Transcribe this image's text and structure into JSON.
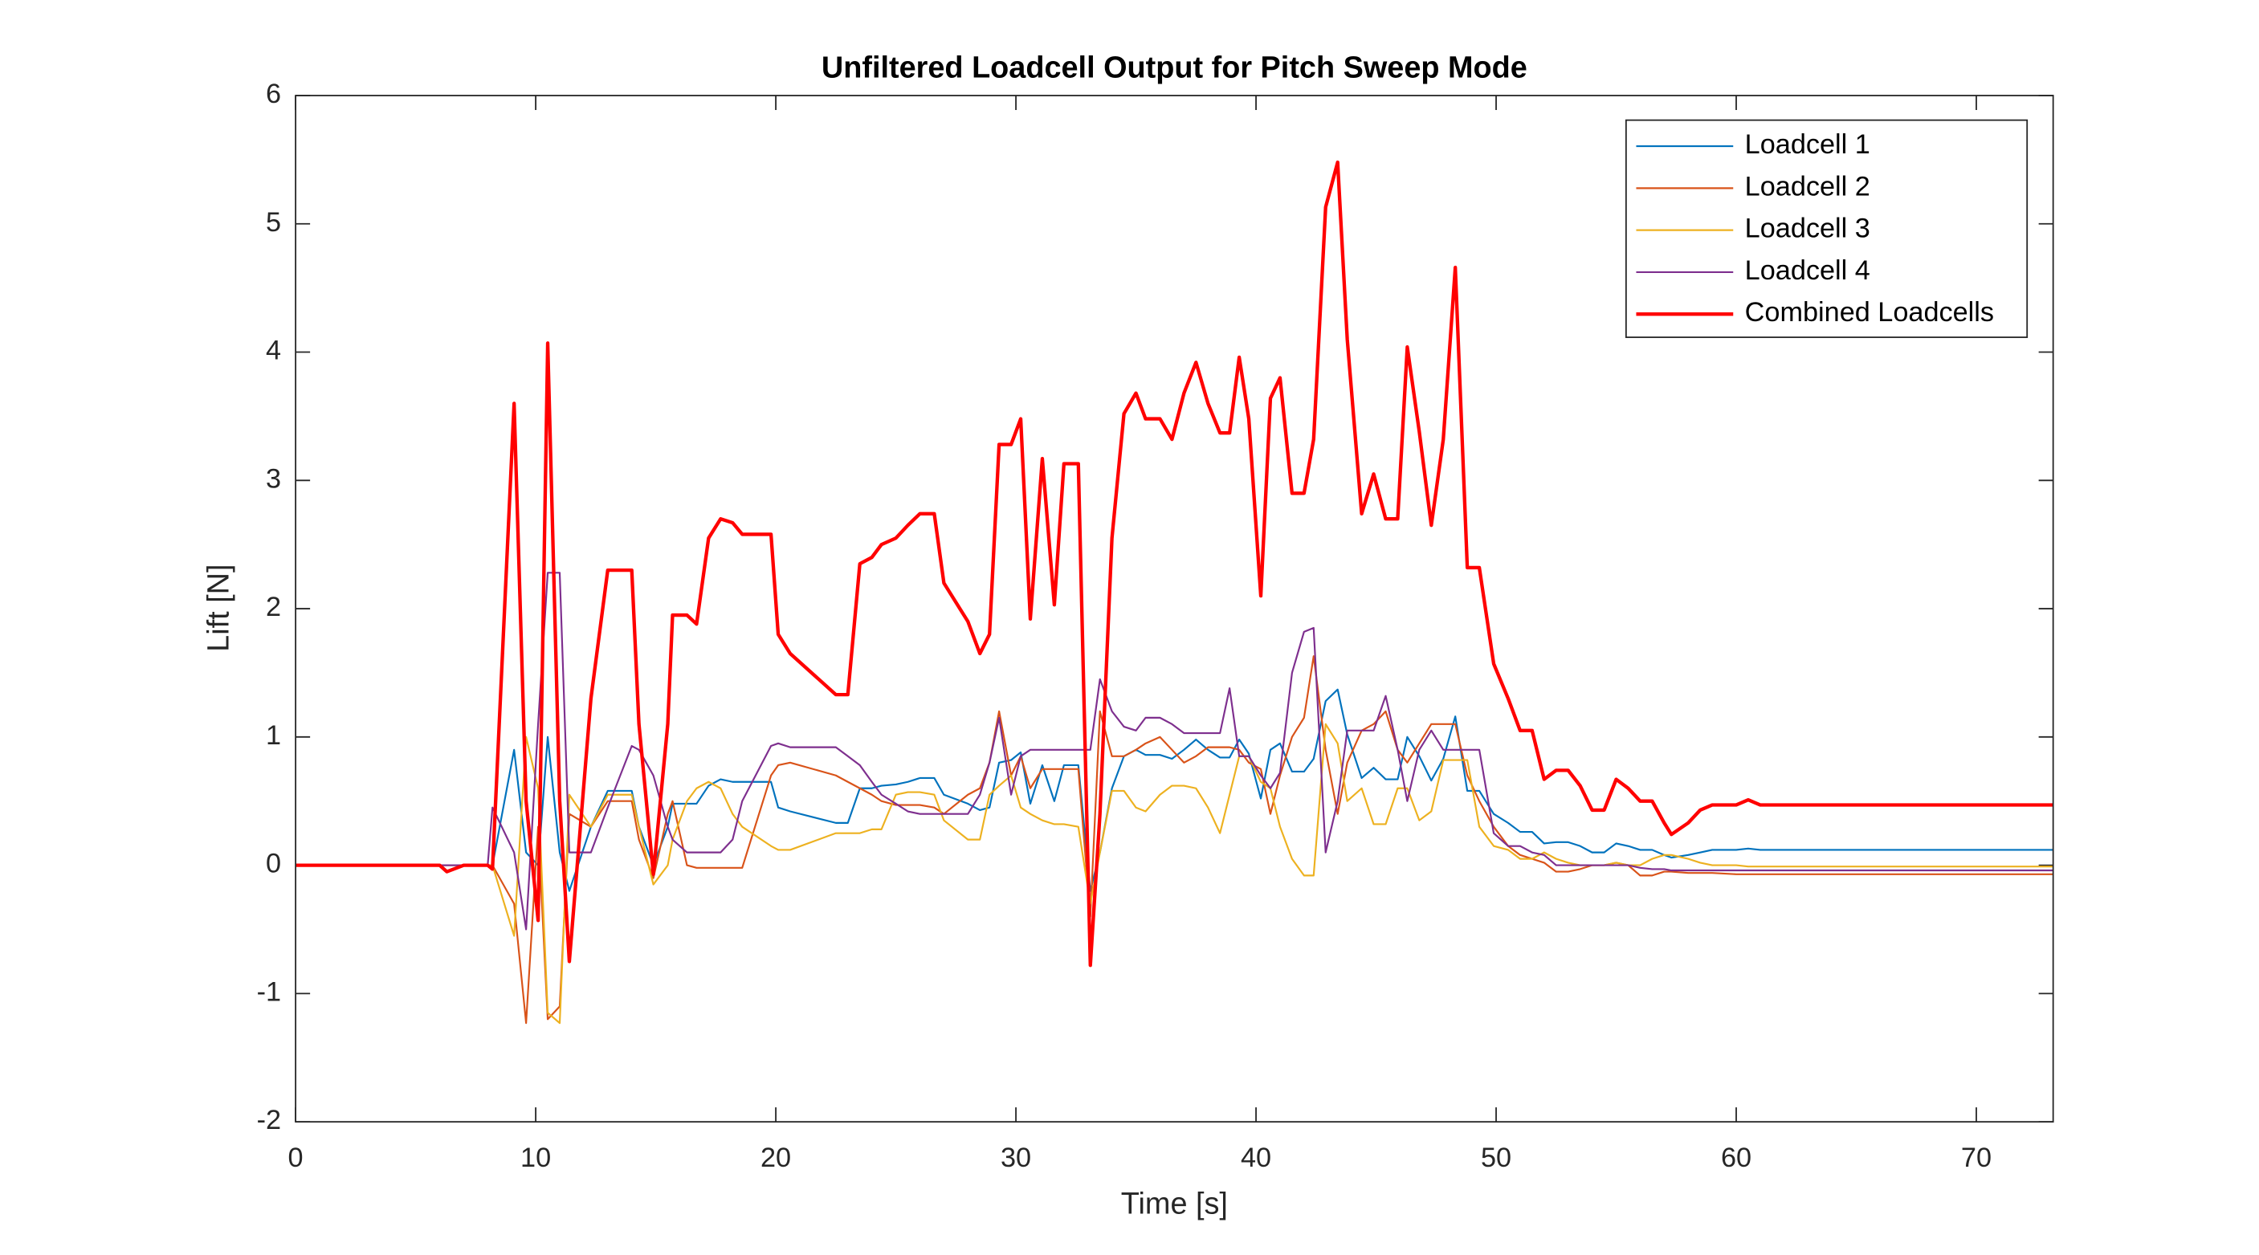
{
  "chart_data": {
    "type": "line",
    "title": "Unfiltered Loadcell Output for Pitch Sweep Mode",
    "x_label": "Time [s]",
    "y_label": "Lift [N]",
    "xlim": [
      0,
      73.2
    ],
    "ylim": [
      -2,
      6
    ],
    "xticks": [
      0,
      10,
      20,
      30,
      40,
      50,
      60,
      70
    ],
    "yticks": [
      -2,
      -1,
      0,
      1,
      2,
      3,
      4,
      5,
      6
    ],
    "legend": "upper right",
    "x": [
      0,
      6,
      6.3,
      7,
      8,
      8.2,
      9.1,
      9.6,
      10.1,
      10.5,
      11,
      11.4,
      12.3,
      13,
      14,
      14.3,
      14.9,
      15.5,
      15.7,
      16.3,
      16.7,
      17.2,
      17.7,
      18.2,
      18.6,
      19.8,
      20.1,
      20.6,
      22.5,
      23,
      23.5,
      24,
      24.4,
      25,
      25.5,
      26,
      26.6,
      27,
      28,
      28.5,
      28.9,
      29.3,
      29.8,
      30.2,
      30.6,
      31.1,
      31.6,
      32,
      32.6,
      33.1,
      33.5,
      34,
      34.5,
      35,
      35.4,
      36,
      36.5,
      37,
      37.5,
      38,
      38.5,
      38.9,
      39.3,
      39.7,
      40.2,
      40.6,
      41,
      41.5,
      42,
      42.4,
      42.9,
      43.4,
      43.8,
      44.4,
      44.9,
      45.4,
      45.9,
      46.3,
      46.8,
      47.3,
      47.8,
      48.3,
      48.8,
      49.3,
      49.9,
      50.5,
      51,
      51.5,
      52,
      52.5,
      53,
      53.5,
      54,
      54.5,
      55,
      55.5,
      56,
      56.5,
      57,
      57.3,
      58,
      58.5,
      59,
      60,
      60.5,
      61,
      73.2
    ],
    "series": [
      {
        "name": "Loadcell 1",
        "color": "#0072bd",
        "width": 1.2,
        "values": [
          0,
          0,
          0,
          0,
          0,
          0,
          0.9,
          0.1,
          0,
          1.0,
          0.1,
          -0.2,
          0.3,
          0.58,
          0.58,
          0.3,
          0,
          0.3,
          0.48,
          0.48,
          0.48,
          0.62,
          0.67,
          0.65,
          0.65,
          0.65,
          0.45,
          0.42,
          0.33,
          0.33,
          0.6,
          0.6,
          0.62,
          0.63,
          0.65,
          0.68,
          0.68,
          0.55,
          0.48,
          0.43,
          0.45,
          0.8,
          0.82,
          0.88,
          0.48,
          0.78,
          0.5,
          0.78,
          0.78,
          -0.2,
          0.1,
          0.6,
          0.85,
          0.9,
          0.86,
          0.86,
          0.83,
          0.9,
          0.98,
          0.9,
          0.84,
          0.84,
          0.98,
          0.87,
          0.52,
          0.9,
          0.95,
          0.73,
          0.73,
          0.83,
          1.28,
          1.37,
          1.02,
          0.68,
          0.76,
          0.67,
          0.67,
          1.0,
          0.85,
          0.66,
          0.83,
          1.16,
          0.58,
          0.58,
          0.4,
          0.33,
          0.26,
          0.26,
          0.17,
          0.18,
          0.18,
          0.15,
          0.1,
          0.1,
          0.17,
          0.15,
          0.12,
          0.12,
          0.08,
          0.06,
          0.08,
          0.1,
          0.12,
          0.12,
          0.13,
          0.12,
          0.12
        ]
      },
      {
        "name": "Loadcell 2",
        "color": "#d95319",
        "width": 1.2,
        "values": [
          0,
          0,
          0,
          0,
          0,
          0,
          -0.3,
          -1.23,
          0.3,
          -1.2,
          -1.1,
          0.4,
          0.3,
          0.5,
          0.5,
          0.2,
          -0.1,
          0.4,
          0.5,
          0,
          -0.02,
          -0.02,
          -0.02,
          -0.02,
          -0.02,
          0.7,
          0.78,
          0.8,
          0.7,
          0.65,
          0.6,
          0.55,
          0.5,
          0.47,
          0.47,
          0.47,
          0.45,
          0.4,
          0.55,
          0.6,
          0.8,
          1.2,
          0.7,
          0.85,
          0.6,
          0.75,
          0.75,
          0.75,
          0.75,
          -0.4,
          1.2,
          0.85,
          0.85,
          0.9,
          0.95,
          1.0,
          0.9,
          0.8,
          0.85,
          0.92,
          0.92,
          0.92,
          0.9,
          0.8,
          0.75,
          0.4,
          0.7,
          1.0,
          1.15,
          1.63,
          0.9,
          0.4,
          0.8,
          1.05,
          1.1,
          1.2,
          0.9,
          0.8,
          0.95,
          1.1,
          1.1,
          1.1,
          0.7,
          0.5,
          0.3,
          0.15,
          0.08,
          0.05,
          0.02,
          -0.05,
          -0.05,
          -0.03,
          0,
          0,
          0.02,
          0,
          -0.08,
          -0.08,
          -0.05,
          -0.05,
          -0.06,
          -0.06,
          -0.06,
          -0.07,
          -0.07,
          -0.07,
          -0.07
        ]
      },
      {
        "name": "Loadcell 3",
        "color": "#edb120",
        "width": 1.2,
        "values": [
          0,
          0,
          0,
          0,
          0,
          0,
          -0.55,
          1.0,
          0.6,
          -1.15,
          -1.23,
          0.55,
          0.3,
          0.55,
          0.55,
          0.3,
          -0.15,
          0,
          0.2,
          0.5,
          0.6,
          0.65,
          0.6,
          0.4,
          0.3,
          0.15,
          0.12,
          0.12,
          0.25,
          0.25,
          0.25,
          0.28,
          0.28,
          0.55,
          0.57,
          0.57,
          0.55,
          0.35,
          0.2,
          0.2,
          0.55,
          0.62,
          0.7,
          0.45,
          0.4,
          0.35,
          0.32,
          0.32,
          0.3,
          -0.3,
          0.1,
          0.58,
          0.58,
          0.45,
          0.42,
          0.55,
          0.62,
          0.62,
          0.6,
          0.45,
          0.25,
          0.55,
          0.85,
          0.85,
          0.65,
          0.6,
          0.3,
          0.05,
          -0.08,
          -0.08,
          1.1,
          0.95,
          0.5,
          0.6,
          0.32,
          0.32,
          0.6,
          0.6,
          0.35,
          0.42,
          0.82,
          0.82,
          0.82,
          0.3,
          0.15,
          0.12,
          0.05,
          0.05,
          0.1,
          0.05,
          0.02,
          0,
          0,
          0,
          0.02,
          0,
          0,
          0.05,
          0.08,
          0.08,
          0.05,
          0.02,
          0,
          0,
          -0.01,
          -0.01,
          -0.01
        ]
      },
      {
        "name": "Loadcell 4",
        "color": "#7e2f8e",
        "width": 1.2,
        "values": [
          0,
          0,
          0,
          0,
          0,
          0.45,
          0.1,
          -0.5,
          1.1,
          2.28,
          2.28,
          0.1,
          0.1,
          0.45,
          0.93,
          0.9,
          0.7,
          0.3,
          0.2,
          0.1,
          0.1,
          0.1,
          0.1,
          0.2,
          0.5,
          0.93,
          0.95,
          0.92,
          0.92,
          0.85,
          0.78,
          0.65,
          0.55,
          0.48,
          0.42,
          0.4,
          0.4,
          0.4,
          0.4,
          0.55,
          0.8,
          1.15,
          0.55,
          0.85,
          0.9,
          0.9,
          0.9,
          0.9,
          0.9,
          0.9,
          1.45,
          1.2,
          1.08,
          1.05,
          1.15,
          1.15,
          1.1,
          1.03,
          1.03,
          1.03,
          1.03,
          1.38,
          0.85,
          0.85,
          0.7,
          0.6,
          0.72,
          1.5,
          1.82,
          1.85,
          0.1,
          0.5,
          1.05,
          1.05,
          1.05,
          1.32,
          0.9,
          0.5,
          0.9,
          1.05,
          0.9,
          0.9,
          0.9,
          0.9,
          0.25,
          0.15,
          0.15,
          0.1,
          0.08,
          0,
          0,
          0,
          0,
          0,
          0,
          0,
          -0.02,
          -0.03,
          -0.03,
          -0.04,
          -0.04,
          -0.04,
          -0.04,
          -0.04,
          -0.04,
          -0.04,
          -0.04
        ]
      },
      {
        "name": "Combined Loadcells",
        "color": "#ff0000",
        "width": 2.4,
        "values": [
          0,
          0,
          -0.05,
          0,
          0,
          -0.03,
          3.6,
          0.5,
          -0.43,
          4.07,
          0.5,
          -0.75,
          1.3,
          2.3,
          2.3,
          1.1,
          -0.07,
          1.1,
          1.95,
          1.95,
          1.88,
          2.55,
          2.7,
          2.67,
          2.58,
          2.58,
          1.8,
          1.65,
          1.33,
          1.33,
          2.35,
          2.4,
          2.5,
          2.55,
          2.65,
          2.74,
          2.74,
          2.2,
          1.9,
          1.65,
          1.8,
          3.28,
          3.28,
          3.48,
          1.92,
          3.17,
          2.03,
          3.13,
          3.13,
          -0.78,
          0.4,
          2.55,
          3.52,
          3.68,
          3.48,
          3.48,
          3.32,
          3.68,
          3.92,
          3.6,
          3.37,
          3.37,
          3.96,
          3.48,
          2.1,
          3.64,
          3.8,
          2.9,
          2.9,
          3.32,
          5.13,
          5.48,
          4.1,
          2.74,
          3.05,
          2.7,
          2.7,
          4.04,
          3.38,
          2.65,
          3.32,
          4.66,
          2.32,
          2.32,
          1.57,
          1.3,
          1.05,
          1.05,
          0.67,
          0.74,
          0.74,
          0.62,
          0.43,
          0.43,
          0.67,
          0.6,
          0.5,
          0.5,
          0.33,
          0.24,
          0.33,
          0.43,
          0.47,
          0.47,
          0.51,
          0.47,
          0.47
        ]
      }
    ]
  }
}
